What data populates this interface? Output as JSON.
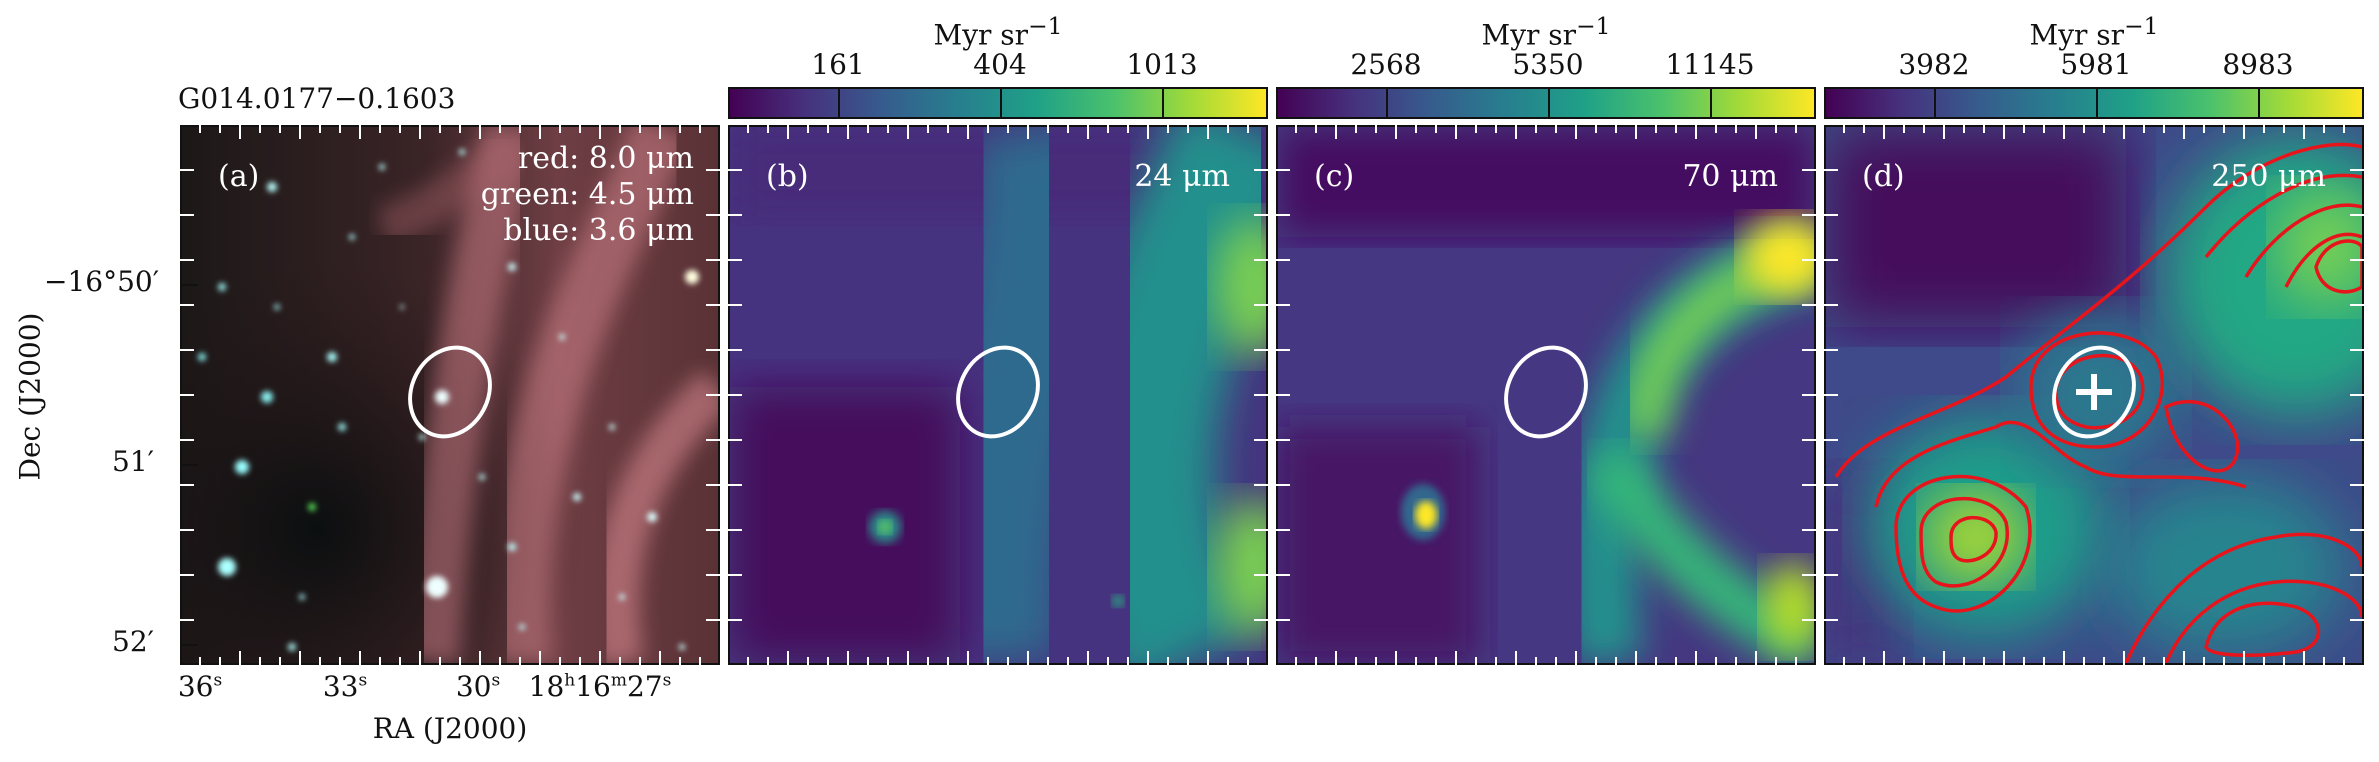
{
  "source_name": "G014.0177−0.1603",
  "y_axis_label": "Dec (J2000)",
  "x_axis_label": "RA (J2000)",
  "y_ticks": [
    "−16°50′",
    "51′",
    "52′"
  ],
  "x_ticks": [
    {
      "v": "36",
      "u": "s"
    },
    {
      "v": "33",
      "u": "s"
    },
    {
      "v": "30",
      "u": "s"
    },
    {
      "v": "18",
      "u": "h",
      "v2": "16",
      "u2": "m",
      "v3": "27",
      "u3": "s"
    }
  ],
  "panels": [
    {
      "label": "(a)",
      "legend": [
        "red: 8.0 μm",
        "green: 4.5 μm",
        "blue: 3.6 μm"
      ]
    },
    {
      "label": "(b)",
      "wavelength": "24 μm",
      "colorbar": {
        "unit": "Myr sr",
        "unit_exp": "−1",
        "ticks": [
          "161",
          "404",
          "1013"
        ]
      }
    },
    {
      "label": "(c)",
      "wavelength": "70 μm",
      "colorbar": {
        "unit": "Myr sr",
        "unit_exp": "−1",
        "ticks": [
          "2568",
          "5350",
          "11145"
        ]
      }
    },
    {
      "label": "(d)",
      "wavelength": "250 μm",
      "colorbar": {
        "unit": "Myr sr",
        "unit_exp": "−1",
        "ticks": [
          "3982",
          "5981",
          "8983"
        ]
      }
    }
  ],
  "colors": {
    "viridis_dark": "#440154",
    "viridis_mid": "#21918c",
    "viridis_bright": "#fde725",
    "contour": "#e8141c",
    "aperture": "#ffffff"
  }
}
